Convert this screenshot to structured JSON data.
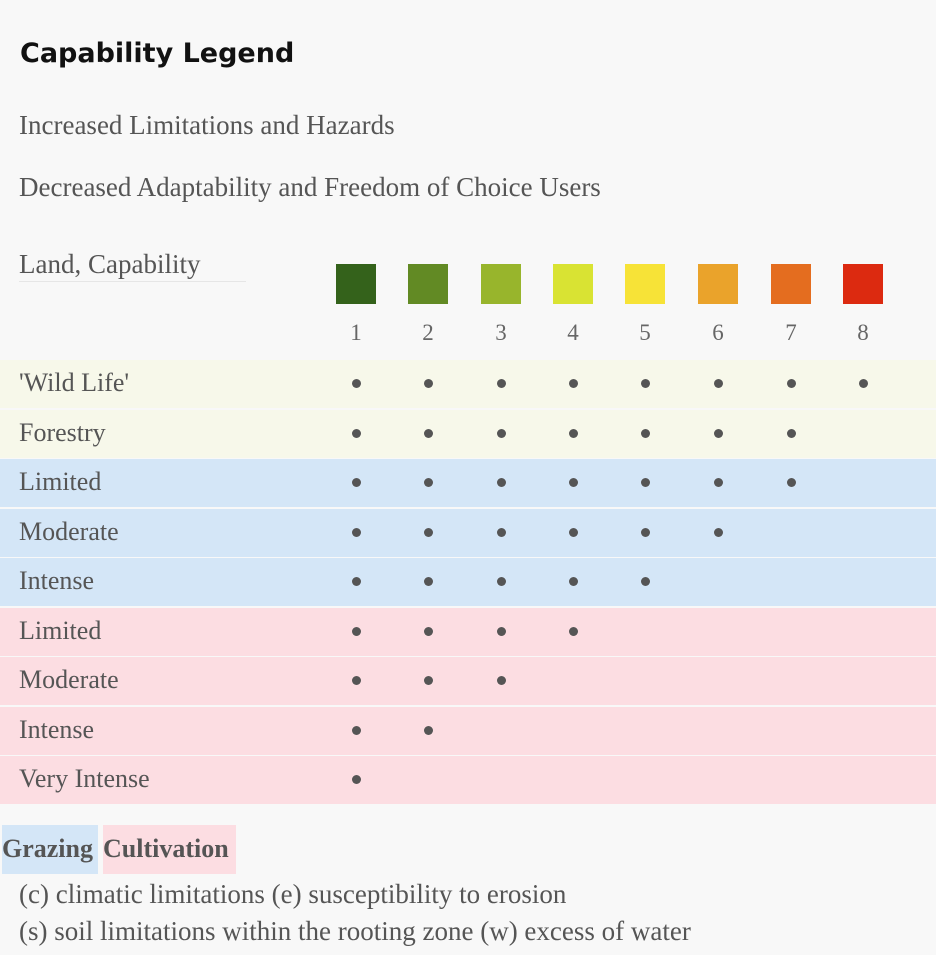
{
  "legend": {
    "title": "Capability Legend",
    "line1": "Increased Limitations and Hazards",
    "line2": "Decreased Adaptability and Freedom of Choice Users",
    "land_capability_label": "Land, Capability"
  },
  "classes": [
    {
      "number": "1",
      "color": "#34621b"
    },
    {
      "number": "2",
      "color": "#628a24"
    },
    {
      "number": "3",
      "color": "#98b52c"
    },
    {
      "number": "4",
      "color": "#d9e333"
    },
    {
      "number": "5",
      "color": "#f7e337"
    },
    {
      "number": "6",
      "color": "#eaa32b"
    },
    {
      "number": "7",
      "color": "#e46d1f"
    },
    {
      "number": "8",
      "color": "#dc2a10"
    }
  ],
  "rows": [
    {
      "label": "'Wild Life'",
      "group": "wild",
      "max_class": 8
    },
    {
      "label": "Forestry",
      "group": "wild",
      "max_class": 7
    },
    {
      "label": "Limited",
      "group": "graze",
      "max_class": 7
    },
    {
      "label": "Moderate",
      "group": "graze",
      "max_class": 6
    },
    {
      "label": "Intense",
      "group": "graze",
      "max_class": 5
    },
    {
      "label": "Limited",
      "group": "cult",
      "max_class": 4
    },
    {
      "label": "Moderate",
      "group": "cult",
      "max_class": 3
    },
    {
      "label": "Intense",
      "group": "cult",
      "max_class": 2
    },
    {
      "label": "Very Intense",
      "group": "cult",
      "max_class": 1
    }
  ],
  "key": {
    "grazing": "Grazing",
    "cultivation": "Cultivation",
    "grazing_color": "#d4e6f7",
    "cultivation_color": "#fcdde2"
  },
  "footnotes": {
    "line1": "(c) climatic limitations (e) susceptibility to erosion",
    "line2": "(s) soil limitations within the rooting zone (w) excess of water"
  }
}
